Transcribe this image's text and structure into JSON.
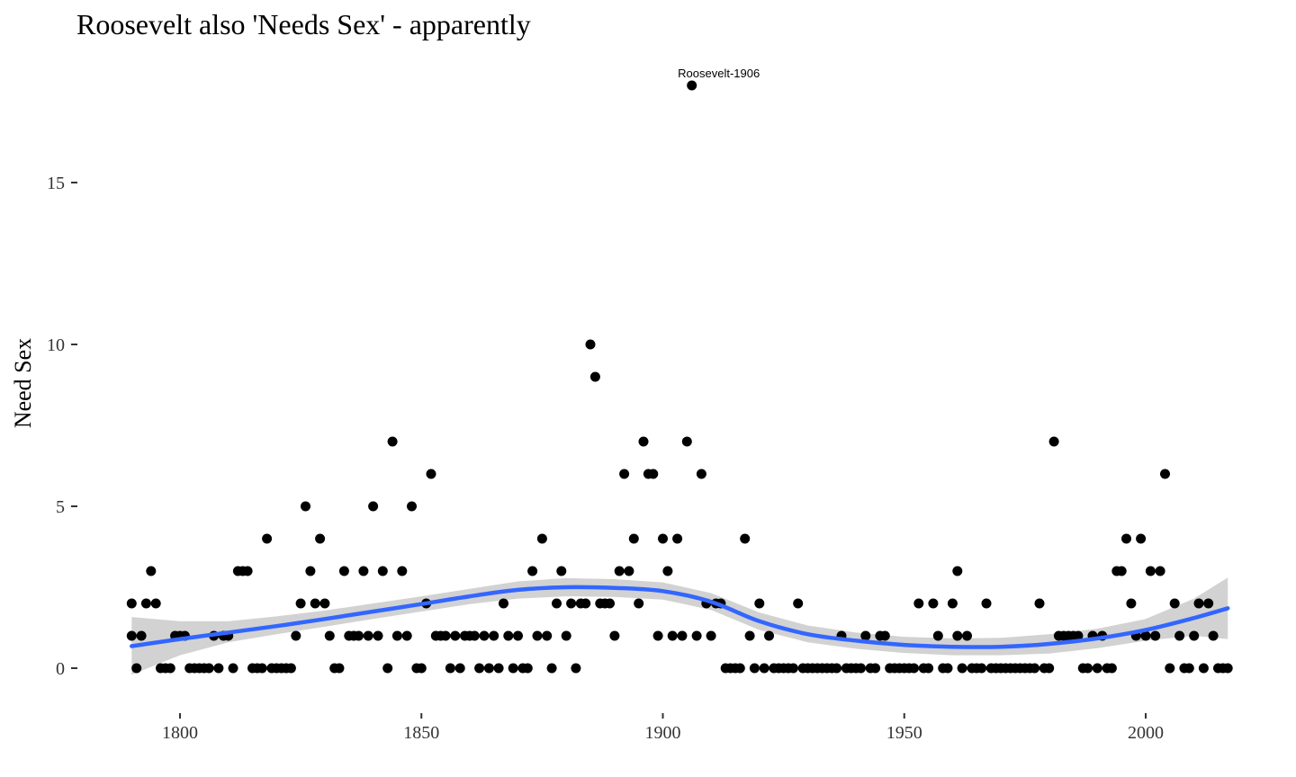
{
  "chart_data": {
    "type": "scatter",
    "title": "Roosevelt also 'Needs Sex' - apparently",
    "xlabel": "",
    "ylabel": "Need Sex",
    "xlim": [
      1789,
      2017
    ],
    "ylim": [
      -1.2,
      18.6
    ],
    "x_ticks": [
      1800,
      1850,
      1900,
      1950,
      2000
    ],
    "y_ticks": [
      0,
      5,
      10,
      15
    ],
    "grid": false,
    "annotations": [
      {
        "text": "Roosevelt-1906",
        "x": 1906,
        "y": 18
      }
    ],
    "smooth_color": "#3366ff",
    "band_color": "#d2d2d2",
    "point_color": "#000000",
    "smooth": [
      {
        "x": 1790,
        "y": 0.68,
        "lo": -0.2,
        "hi": 1.58
      },
      {
        "x": 1800,
        "y": 0.9,
        "lo": 0.4,
        "hi": 1.45
      },
      {
        "x": 1810,
        "y": 1.1,
        "lo": 0.8,
        "hi": 1.45
      },
      {
        "x": 1820,
        "y": 1.3,
        "lo": 1.05,
        "hi": 1.6
      },
      {
        "x": 1830,
        "y": 1.52,
        "lo": 1.28,
        "hi": 1.78
      },
      {
        "x": 1840,
        "y": 1.75,
        "lo": 1.52,
        "hi": 2.0
      },
      {
        "x": 1850,
        "y": 1.98,
        "lo": 1.75,
        "hi": 2.22
      },
      {
        "x": 1860,
        "y": 2.22,
        "lo": 1.98,
        "hi": 2.45
      },
      {
        "x": 1870,
        "y": 2.42,
        "lo": 2.15,
        "hi": 2.68
      },
      {
        "x": 1880,
        "y": 2.5,
        "lo": 2.22,
        "hi": 2.78
      },
      {
        "x": 1890,
        "y": 2.48,
        "lo": 2.2,
        "hi": 2.75
      },
      {
        "x": 1900,
        "y": 2.38,
        "lo": 2.12,
        "hi": 2.65
      },
      {
        "x": 1910,
        "y": 2.05,
        "lo": 1.8,
        "hi": 2.32
      },
      {
        "x": 1920,
        "y": 1.45,
        "lo": 1.18,
        "hi": 1.72
      },
      {
        "x": 1930,
        "y": 1.05,
        "lo": 0.8,
        "hi": 1.32
      },
      {
        "x": 1940,
        "y": 0.85,
        "lo": 0.6,
        "hi": 1.1
      },
      {
        "x": 1950,
        "y": 0.72,
        "lo": 0.47,
        "hi": 0.97
      },
      {
        "x": 1960,
        "y": 0.66,
        "lo": 0.4,
        "hi": 0.92
      },
      {
        "x": 1970,
        "y": 0.66,
        "lo": 0.4,
        "hi": 0.94
      },
      {
        "x": 1980,
        "y": 0.75,
        "lo": 0.45,
        "hi": 1.05
      },
      {
        "x": 1990,
        "y": 0.92,
        "lo": 0.62,
        "hi": 1.22
      },
      {
        "x": 2000,
        "y": 1.18,
        "lo": 0.85,
        "hi": 1.52
      },
      {
        "x": 2010,
        "y": 1.55,
        "lo": 1.0,
        "hi": 2.15
      },
      {
        "x": 2017,
        "y": 1.85,
        "lo": 0.9,
        "hi": 2.8
      }
    ],
    "points": [
      [
        1790,
        1
      ],
      [
        1790,
        2
      ],
      [
        1791,
        0
      ],
      [
        1792,
        1
      ],
      [
        1793,
        2
      ],
      [
        1794,
        3
      ],
      [
        1795,
        2
      ],
      [
        1796,
        0
      ],
      [
        1797,
        0
      ],
      [
        1798,
        0
      ],
      [
        1799,
        1
      ],
      [
        1800,
        1
      ],
      [
        1801,
        1
      ],
      [
        1802,
        0
      ],
      [
        1803,
        0
      ],
      [
        1804,
        0
      ],
      [
        1805,
        0
      ],
      [
        1806,
        0
      ],
      [
        1807,
        1
      ],
      [
        1808,
        0
      ],
      [
        1809,
        1
      ],
      [
        1810,
        1
      ],
      [
        1811,
        0
      ],
      [
        1812,
        3
      ],
      [
        1813,
        3
      ],
      [
        1814,
        3
      ],
      [
        1815,
        0
      ],
      [
        1816,
        0
      ],
      [
        1817,
        0
      ],
      [
        1818,
        4
      ],
      [
        1819,
        0
      ],
      [
        1820,
        0
      ],
      [
        1821,
        0
      ],
      [
        1822,
        0
      ],
      [
        1823,
        0
      ],
      [
        1824,
        1
      ],
      [
        1825,
        2
      ],
      [
        1826,
        5
      ],
      [
        1827,
        3
      ],
      [
        1828,
        2
      ],
      [
        1829,
        4
      ],
      [
        1830,
        2
      ],
      [
        1831,
        1
      ],
      [
        1832,
        0
      ],
      [
        1833,
        0
      ],
      [
        1834,
        3
      ],
      [
        1835,
        1
      ],
      [
        1836,
        1
      ],
      [
        1837,
        1
      ],
      [
        1838,
        3
      ],
      [
        1839,
        1
      ],
      [
        1840,
        5
      ],
      [
        1841,
        1
      ],
      [
        1842,
        3
      ],
      [
        1843,
        0
      ],
      [
        1844,
        7
      ],
      [
        1845,
        1
      ],
      [
        1846,
        3
      ],
      [
        1847,
        1
      ],
      [
        1848,
        5
      ],
      [
        1849,
        0
      ],
      [
        1850,
        0
      ],
      [
        1851,
        2
      ],
      [
        1852,
        6
      ],
      [
        1853,
        1
      ],
      [
        1854,
        1
      ],
      [
        1855,
        1
      ],
      [
        1856,
        0
      ],
      [
        1857,
        1
      ],
      [
        1858,
        0
      ],
      [
        1859,
        1
      ],
      [
        1860,
        1
      ],
      [
        1861,
        1
      ],
      [
        1862,
        0
      ],
      [
        1863,
        1
      ],
      [
        1864,
        0
      ],
      [
        1865,
        1
      ],
      [
        1866,
        0
      ],
      [
        1867,
        2
      ],
      [
        1868,
        1
      ],
      [
        1869,
        0
      ],
      [
        1870,
        1
      ],
      [
        1871,
        0
      ],
      [
        1872,
        0
      ],
      [
        1873,
        3
      ],
      [
        1874,
        1
      ],
      [
        1875,
        4
      ],
      [
        1876,
        1
      ],
      [
        1877,
        0
      ],
      [
        1878,
        2
      ],
      [
        1879,
        3
      ],
      [
        1880,
        1
      ],
      [
        1881,
        2
      ],
      [
        1882,
        0
      ],
      [
        1883,
        2
      ],
      [
        1884,
        2
      ],
      [
        1885,
        10
      ],
      [
        1886,
        9
      ],
      [
        1887,
        2
      ],
      [
        1888,
        2
      ],
      [
        1889,
        2
      ],
      [
        1890,
        1
      ],
      [
        1891,
        3
      ],
      [
        1892,
        6
      ],
      [
        1893,
        3
      ],
      [
        1894,
        4
      ],
      [
        1895,
        2
      ],
      [
        1896,
        7
      ],
      [
        1897,
        6
      ],
      [
        1898,
        6
      ],
      [
        1899,
        1
      ],
      [
        1900,
        4
      ],
      [
        1901,
        3
      ],
      [
        1902,
        1
      ],
      [
        1903,
        4
      ],
      [
        1904,
        1
      ],
      [
        1905,
        7
      ],
      [
        1906,
        18
      ],
      [
        1907,
        1
      ],
      [
        1908,
        6
      ],
      [
        1909,
        2
      ],
      [
        1910,
        1
      ],
      [
        1911,
        2
      ],
      [
        1912,
        2
      ],
      [
        1913,
        0
      ],
      [
        1914,
        0
      ],
      [
        1915,
        0
      ],
      [
        1916,
        0
      ],
      [
        1917,
        4
      ],
      [
        1918,
        1
      ],
      [
        1919,
        0
      ],
      [
        1920,
        2
      ],
      [
        1921,
        0
      ],
      [
        1922,
        1
      ],
      [
        1923,
        0
      ],
      [
        1924,
        0
      ],
      [
        1925,
        0
      ],
      [
        1926,
        0
      ],
      [
        1927,
        0
      ],
      [
        1928,
        2
      ],
      [
        1929,
        0
      ],
      [
        1930,
        0
      ],
      [
        1931,
        0
      ],
      [
        1932,
        0
      ],
      [
        1933,
        0
      ],
      [
        1934,
        0
      ],
      [
        1935,
        0
      ],
      [
        1936,
        0
      ],
      [
        1937,
        1
      ],
      [
        1938,
        0
      ],
      [
        1939,
        0
      ],
      [
        1940,
        0
      ],
      [
        1941,
        0
      ],
      [
        1942,
        1
      ],
      [
        1943,
        0
      ],
      [
        1944,
        0
      ],
      [
        1945,
        1
      ],
      [
        1946,
        1
      ],
      [
        1947,
        0
      ],
      [
        1948,
        0
      ],
      [
        1949,
        0
      ],
      [
        1950,
        0
      ],
      [
        1951,
        0
      ],
      [
        1952,
        0
      ],
      [
        1953,
        2
      ],
      [
        1954,
        0
      ],
      [
        1955,
        0
      ],
      [
        1956,
        2
      ],
      [
        1957,
        1
      ],
      [
        1958,
        0
      ],
      [
        1959,
        0
      ],
      [
        1960,
        2
      ],
      [
        1961,
        3
      ],
      [
        1961,
        1
      ],
      [
        1962,
        0
      ],
      [
        1963,
        1
      ],
      [
        1964,
        0
      ],
      [
        1965,
        0
      ],
      [
        1966,
        0
      ],
      [
        1967,
        2
      ],
      [
        1968,
        0
      ],
      [
        1969,
        0
      ],
      [
        1970,
        0
      ],
      [
        1971,
        0
      ],
      [
        1972,
        0
      ],
      [
        1973,
        0
      ],
      [
        1974,
        0
      ],
      [
        1975,
        0
      ],
      [
        1976,
        0
      ],
      [
        1977,
        0
      ],
      [
        1978,
        2
      ],
      [
        1979,
        0
      ],
      [
        1980,
        0
      ],
      [
        1981,
        7
      ],
      [
        1982,
        1
      ],
      [
        1983,
        1
      ],
      [
        1984,
        1
      ],
      [
        1985,
        1
      ],
      [
        1986,
        1
      ],
      [
        1987,
        0
      ],
      [
        1988,
        0
      ],
      [
        1989,
        1
      ],
      [
        1990,
        0
      ],
      [
        1991,
        1
      ],
      [
        1992,
        0
      ],
      [
        1993,
        0
      ],
      [
        1994,
        3
      ],
      [
        1995,
        3
      ],
      [
        1996,
        4
      ],
      [
        1997,
        2
      ],
      [
        1998,
        1
      ],
      [
        1999,
        4
      ],
      [
        2000,
        1
      ],
      [
        2001,
        3
      ],
      [
        2002,
        1
      ],
      [
        2003,
        3
      ],
      [
        2004,
        6
      ],
      [
        2005,
        0
      ],
      [
        2006,
        2
      ],
      [
        2007,
        1
      ],
      [
        2008,
        0
      ],
      [
        2009,
        0
      ],
      [
        2010,
        1
      ],
      [
        2011,
        2
      ],
      [
        2012,
        0
      ],
      [
        2013,
        2
      ],
      [
        2014,
        1
      ],
      [
        2015,
        0
      ],
      [
        2016,
        0
      ],
      [
        2017,
        0
      ]
    ]
  }
}
